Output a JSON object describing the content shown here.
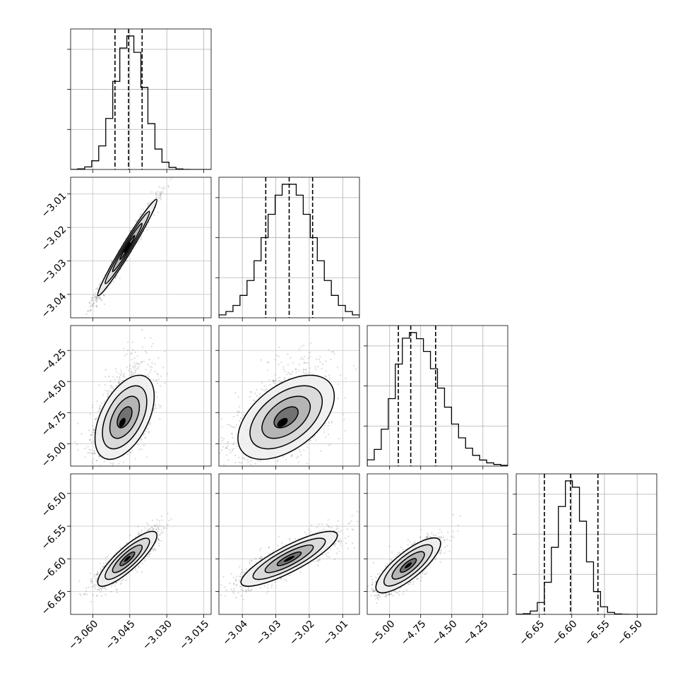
{
  "chart_data": {
    "type": "corner",
    "grid": true,
    "parameters": [
      {
        "mean": -3.045,
        "sd": 0.006,
        "range": [
          -3.069,
          -3.012
        ],
        "quantiles": [
          -3.051,
          -3.0455,
          -3.04
        ],
        "ticks": [
          -3.06,
          -3.045,
          -3.03,
          -3.015
        ],
        "tick_labels": [
          "−3.060",
          "−3.045",
          "−3.030",
          "−3.015"
        ]
      },
      {
        "mean": -3.026,
        "sd": 0.0072,
        "range": [
          -3.047,
          -3.005
        ],
        "quantiles": [
          -3.033,
          -3.026,
          -3.019
        ],
        "ticks": [
          -3.04,
          -3.03,
          -3.02,
          -3.01
        ],
        "tick_labels": [
          "−3.04",
          "−3.03",
          "−3.02",
          "−3.01"
        ]
      },
      {
        "mean": -4.83,
        "sd": 0.13,
        "range": [
          -5.18,
          -4.05
        ],
        "quantiles": [
          -4.93,
          -4.83,
          -4.63
        ],
        "ticks": [
          -5.0,
          -4.75,
          -4.5,
          -4.25
        ],
        "tick_labels": [
          "−5.00",
          "−4.75",
          "−4.50",
          "−4.25"
        ]
      },
      {
        "mean": -6.601,
        "sd": 0.021,
        "range": [
          -6.685,
          -6.47
        ],
        "quantiles": [
          -6.642,
          -6.602,
          -6.56
        ],
        "ticks": [
          -6.65,
          -6.6,
          -6.55,
          -6.5
        ],
        "tick_labels": [
          "−6.65",
          "−6.60",
          "−6.55",
          "−6.50"
        ]
      }
    ],
    "row_tick_labels": [
      [],
      [
        "−3.01",
        "−3.02",
        "−3.03",
        "−3.04"
      ],
      [
        "−4.25",
        "−4.50",
        "−4.75",
        "−5.00"
      ],
      [
        "−6.50",
        "−6.55",
        "−6.60",
        "−6.65"
      ]
    ],
    "pairs": [
      {
        "row": 1,
        "col": 0,
        "x_center": -3.046,
        "y_center": -3.026,
        "sx": 0.006,
        "sy": 0.0072,
        "correlation": 0.98
      },
      {
        "row": 2,
        "col": 0,
        "x_center": -3.048,
        "y_center": -4.83,
        "sx": 0.006,
        "sy": 0.13,
        "correlation": 0.5
      },
      {
        "row": 2,
        "col": 1,
        "x_center": -3.028,
        "y_center": -4.83,
        "sx": 0.0072,
        "sy": 0.13,
        "correlation": 0.5
      },
      {
        "row": 3,
        "col": 0,
        "x_center": -3.046,
        "y_center": -6.6,
        "sx": 0.006,
        "sy": 0.021,
        "correlation": 0.85
      },
      {
        "row": 3,
        "col": 1,
        "x_center": -3.026,
        "y_center": -6.6,
        "sx": 0.0072,
        "sy": 0.021,
        "correlation": 0.85
      },
      {
        "row": 3,
        "col": 2,
        "x_center": -4.85,
        "y_center": -6.61,
        "sx": 0.13,
        "sy": 0.021,
        "correlation": 0.8
      }
    ]
  }
}
